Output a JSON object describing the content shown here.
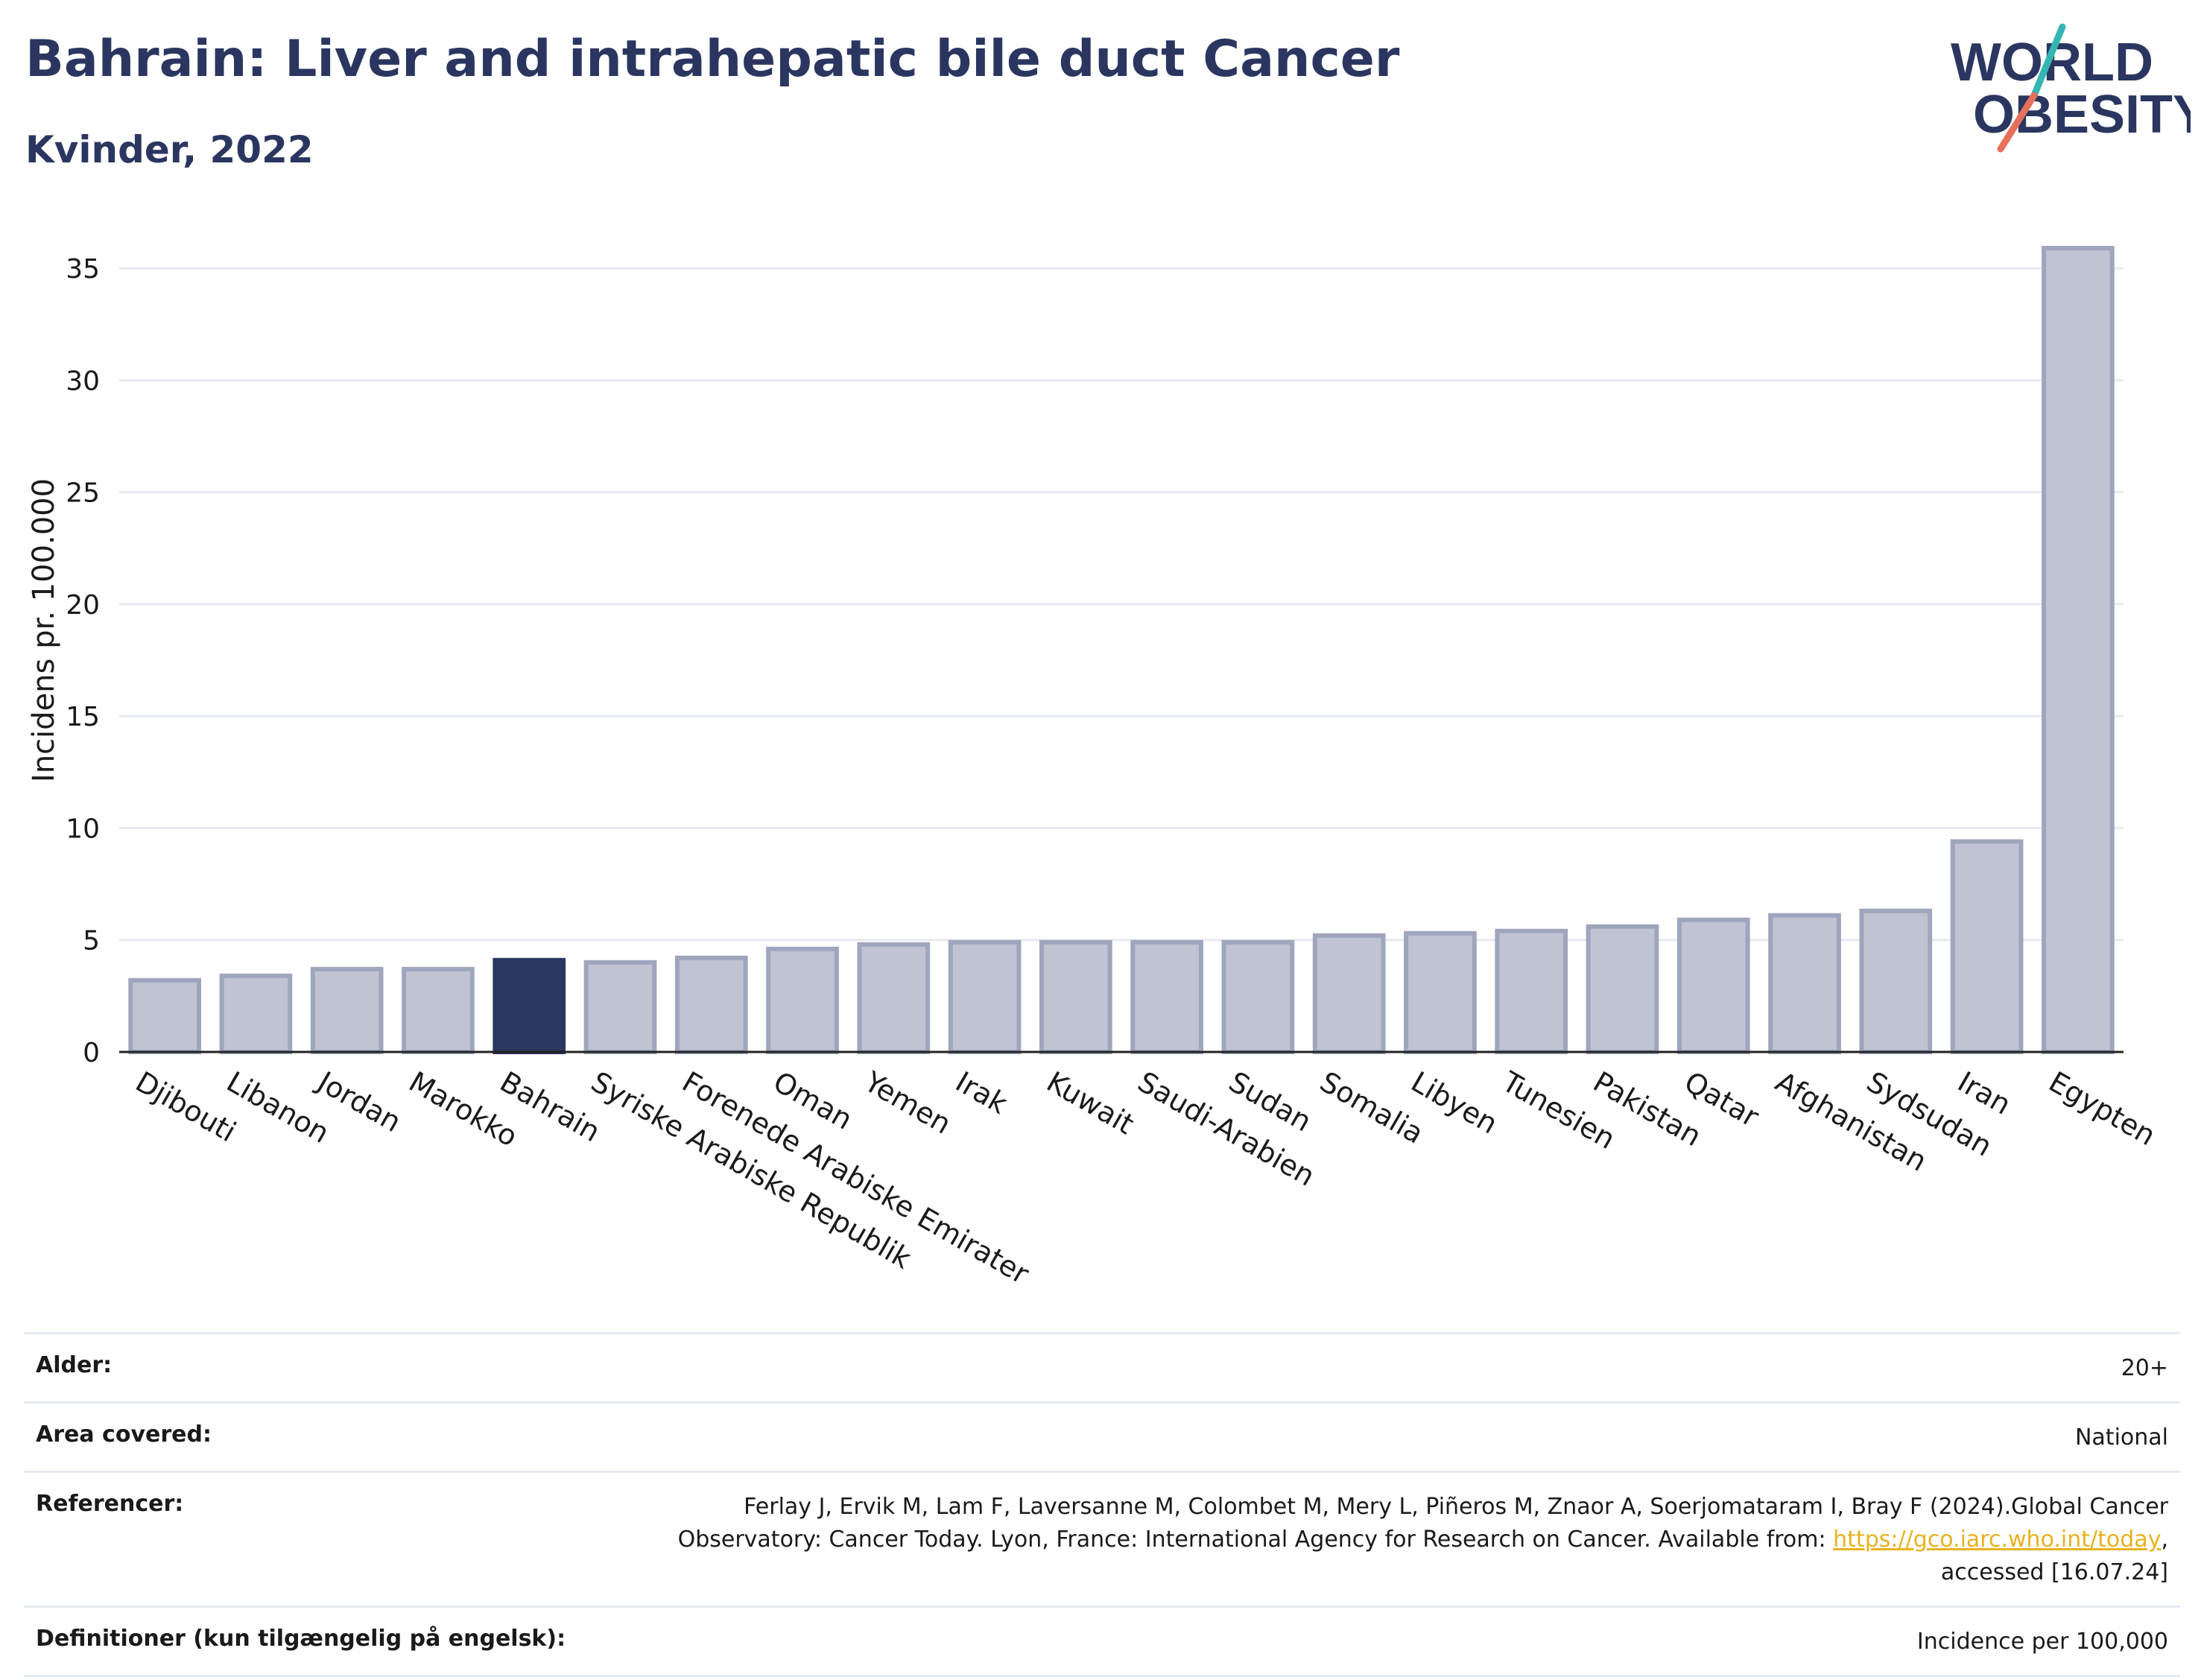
{
  "header": {
    "title": "Bahrain: Liver and intrahepatic bile duct Cancer",
    "subtitle": "Kvinder, 2022"
  },
  "logo": {
    "line1": "WORLD",
    "line2": "OBESITY",
    "colors": {
      "text": "#2b3660",
      "accent_teal": "#35b6b4",
      "accent_coral": "#e6705c"
    }
  },
  "chart_data": {
    "type": "bar",
    "ylabel": "Incidens pr. 100.000",
    "xlabel": "",
    "ylim": [
      0,
      37
    ],
    "yticks": [
      0,
      5,
      10,
      15,
      20,
      25,
      30,
      35
    ],
    "grid": true,
    "highlight": "Bahrain",
    "colors": {
      "bar": "#bfc3d2",
      "bar_edge": "#9ea5bd",
      "highlight": "#2b3660"
    },
    "categories": [
      "Djibouti",
      "Libanon",
      "Jordan",
      "Marokko",
      "Bahrain",
      "Syriske Arabiske Republik",
      "Forenede Arabiske Emirater",
      "Oman",
      "Yemen",
      "Irak",
      "Kuwait",
      "Saudi-Arabien",
      "Sudan",
      "Somalia",
      "Libyen",
      "Tunesien",
      "Pakistan",
      "Qatar",
      "Afghanistan",
      "Sydsudan",
      "Iran",
      "Egypten"
    ],
    "values": [
      3.2,
      3.4,
      3.7,
      3.7,
      4.1,
      4.0,
      4.2,
      4.6,
      4.8,
      4.9,
      4.9,
      4.9,
      4.9,
      5.2,
      5.3,
      5.4,
      5.6,
      5.9,
      6.1,
      6.3,
      9.4,
      35.9
    ]
  },
  "footer": {
    "rows": [
      {
        "label": "Alder:",
        "value": "20+"
      },
      {
        "label": "Area covered:",
        "value": "National"
      },
      {
        "label": "Referencer:",
        "value_line1": "Ferlay J, Ervik M, Lam F, Laversanne M, Colombet M, Mery L, Piñeros M, Znaor A, Soerjomataram I, Bray F (2024).Global Cancer",
        "value_line2_pre": "Observatory: Cancer Today. Lyon, France: International Agency for Research on Cancer. Available from: ",
        "link": "https://gco.iarc.who.int/today",
        "value_line2_post": ",",
        "value_line3": "accessed [16.07.24]"
      },
      {
        "label": "Definitioner (kun tilgængelig på engelsk):",
        "value": "Incidence per 100,000"
      }
    ]
  }
}
